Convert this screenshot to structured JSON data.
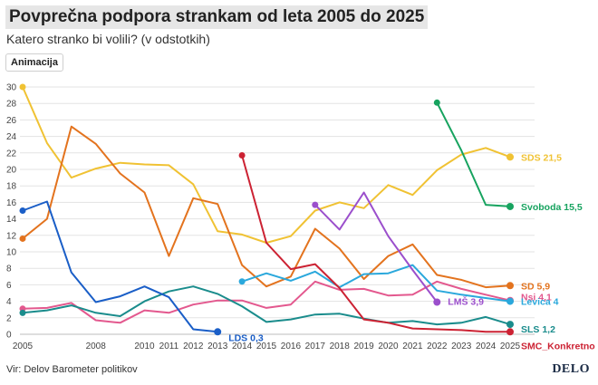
{
  "header": {
    "title": "Povprečna podpora strankam od leta 2005 do 2025",
    "subtitle": "Katero stranko bi volili? (v odstotkih)",
    "animation_button": "Animacija"
  },
  "footer": {
    "source": "Vir: Delov Barometer politikov",
    "logo": "DELO"
  },
  "chart_data": {
    "type": "line",
    "title": "Povprečna podpora strankam od leta 2005 do 2025",
    "subtitle": "Katero stranko bi volili? (v odstotkih)",
    "x_ticks": [
      2005,
      2008,
      2010,
      2011,
      2012,
      2013,
      2014,
      2015,
      2016,
      2017,
      2018,
      2019,
      2020,
      2021,
      2022,
      2023,
      2024,
      2025
    ],
    "xlim": [
      2005,
      2025
    ],
    "y_ticks": [
      0,
      2,
      4,
      6,
      8,
      10,
      12,
      14,
      16,
      18,
      20,
      22,
      24,
      26,
      28,
      30
    ],
    "ylim": [
      0,
      30
    ],
    "grid": true,
    "series": [
      {
        "name": "SDS",
        "end_label": "SDS 21,5",
        "color": "#f0c233",
        "x": [
          2005,
          2006,
          2007,
          2008,
          2009,
          2010,
          2011,
          2012,
          2013,
          2014,
          2015,
          2016,
          2017,
          2018,
          2019,
          2020,
          2021,
          2022,
          2023,
          2024,
          2025
        ],
        "y": [
          30,
          23.2,
          19,
          20.1,
          20.8,
          20.6,
          20.5,
          18.2,
          12.5,
          12.1,
          11.1,
          11.9,
          15,
          16,
          15.3,
          18.1,
          16.9,
          19.9,
          21.8,
          22.6,
          21.5
        ]
      },
      {
        "name": "Svoboda",
        "end_label": "Svoboda 15,5",
        "color": "#17a35f",
        "x": [
          2022,
          2023,
          2024,
          2025
        ],
        "y": [
          28.1,
          22.3,
          15.7,
          15.5
        ]
      },
      {
        "name": "SD",
        "end_label": "SD 5,9",
        "color": "#e3731e",
        "x": [
          2005,
          2006,
          2007,
          2008,
          2009,
          2010,
          2011,
          2012,
          2013,
          2014,
          2015,
          2016,
          2017,
          2018,
          2019,
          2020,
          2021,
          2022,
          2023,
          2024,
          2025
        ],
        "y": [
          11.6,
          14,
          25.2,
          23.1,
          19.5,
          17.2,
          9.5,
          16.5,
          15.8,
          8.4,
          5.8,
          7,
          12.8,
          10.4,
          6.7,
          9.5,
          10.9,
          7.2,
          6.6,
          5.7,
          5.9
        ]
      },
      {
        "name": "NSi",
        "end_label": "Nsi 4,1",
        "color": "#e3588e",
        "x": [
          2005,
          2006,
          2007,
          2008,
          2009,
          2010,
          2011,
          2012,
          2013,
          2014,
          2015,
          2016,
          2017,
          2018,
          2019,
          2020,
          2021,
          2022,
          2023,
          2024,
          2025
        ],
        "y": [
          3.1,
          3.2,
          3.8,
          1.7,
          1.4,
          2.9,
          2.6,
          3.6,
          4.1,
          4.1,
          3.2,
          3.6,
          6.4,
          5.4,
          5.5,
          4.7,
          4.8,
          6.4,
          5.5,
          4.8,
          4.1
        ]
      },
      {
        "name": "Levica",
        "end_label": "Levica 4",
        "color": "#2aa8dc",
        "x": [
          2014,
          2015,
          2016,
          2017,
          2018,
          2019,
          2020,
          2021,
          2022,
          2023,
          2024,
          2025
        ],
        "y": [
          6.4,
          7.4,
          6.5,
          7.6,
          5.7,
          7.3,
          7.4,
          8.4,
          5.3,
          4.8,
          4.4,
          4.0
        ]
      },
      {
        "name": "LMŠ",
        "end_label": "LMŠ 3,9",
        "color": "#9b4fcc",
        "x": [
          2017,
          2018,
          2019,
          2020,
          2021,
          2022
        ],
        "y": [
          15.7,
          12.7,
          17.2,
          11.9,
          7.8,
          3.9
        ]
      },
      {
        "name": "SLS",
        "end_label": "SLS 1,2",
        "color": "#1a8c8c",
        "x": [
          2005,
          2006,
          2007,
          2008,
          2009,
          2010,
          2011,
          2012,
          2013,
          2014,
          2015,
          2016,
          2017,
          2018,
          2019,
          2020,
          2021,
          2022,
          2023,
          2024,
          2025
        ],
        "y": [
          2.6,
          2.9,
          3.5,
          2.6,
          2.2,
          4,
          5.2,
          5.8,
          4.9,
          3.4,
          1.5,
          1.8,
          2.4,
          2.5,
          1.9,
          1.4,
          1.6,
          1.2,
          1.4,
          2.1,
          1.2
        ]
      },
      {
        "name": "LDS",
        "end_label": "LDS 0,3",
        "color": "#1a5ec7",
        "x": [
          2005,
          2006,
          2007,
          2008,
          2009,
          2010,
          2011,
          2012,
          2013
        ],
        "y": [
          15,
          16.1,
          7.5,
          3.9,
          4.6,
          5.8,
          4.5,
          0.6,
          0.3
        ]
      },
      {
        "name": "SMC_Konkretno",
        "end_label": "SMC_Konkretno",
        "color": "#cc2233",
        "x": [
          2014,
          2015,
          2016,
          2017,
          2018,
          2019,
          2020,
          2021,
          2022,
          2023,
          2024,
          2025
        ],
        "y": [
          21.7,
          11.1,
          7.9,
          8.5,
          5.6,
          1.8,
          1.4,
          0.7,
          0.6,
          0.5,
          0.3,
          0.3
        ]
      }
    ]
  }
}
